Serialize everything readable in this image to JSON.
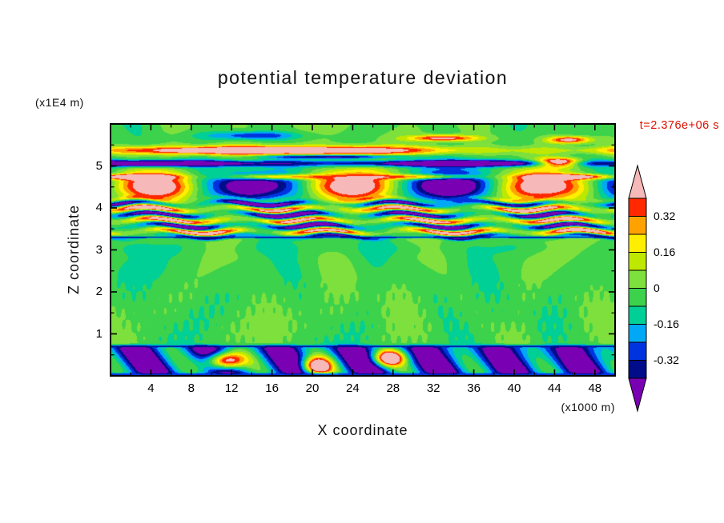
{
  "chart_data": {
    "type": "heatmap",
    "title": "potential temperature deviation",
    "timestamp": "t=2.376e+06 s",
    "xlabel": "X coordinate",
    "ylabel": "Z coordinate",
    "x_units": "(x1000 m)",
    "y_units": "(x1E4 m)",
    "xlim": [
      0,
      50
    ],
    "ylim": [
      0,
      6
    ],
    "xticks": [
      4,
      8,
      12,
      16,
      20,
      24,
      28,
      32,
      36,
      40,
      44,
      48
    ],
    "xtick_minor_step": 2,
    "yticks": [
      1,
      2,
      3,
      4,
      5
    ],
    "ytick_minor_step": 0.5,
    "grid": false,
    "legend_position": "right-colorbar",
    "accent_colors": {
      "timestamp_red": "#dd1100",
      "axis_black": "#000000"
    },
    "colorbar": {
      "tick_values": [
        0.32,
        0.16,
        0,
        -0.16,
        -0.32
      ],
      "tick_labels": [
        "0.32",
        "0.16",
        "0",
        "-0.16",
        "-0.32"
      ],
      "levels": [
        -0.4,
        -0.32,
        -0.24,
        -0.16,
        -0.08,
        0,
        0.08,
        0.16,
        0.24,
        0.32,
        0.4
      ],
      "colors_low_to_high": [
        "#7a00b4",
        "#000d8a",
        "#0033e0",
        "#00a8f5",
        "#00cf96",
        "#3cd24c",
        "#7ee03c",
        "#bfe800",
        "#ffee00",
        "#ffa200",
        "#ff2800",
        "#f6b8b8"
      ]
    },
    "field_model": {
      "mid": {
        "base": -0.03,
        "amp": 0.075,
        "kx": 0.52,
        "kz": 1.65,
        "warp": 1.25
      },
      "fine_texture": {
        "amp": 0.032,
        "kx": 6.1,
        "kz": 9.3,
        "z0": 0.72,
        "z1": 2.4
      },
      "teal_band": {
        "z": 3.05,
        "w": 0.18,
        "amp": -0.045
      },
      "stripes": {
        "z0": 3.25,
        "z1": 4.18,
        "period": 0.27,
        "amp": 0.5,
        "phase": -2.734,
        "mod_wl": 12.7,
        "wobble": 0.05
      },
      "cells": {
        "center": 4.52,
        "width": 0.34,
        "amp": 0.54,
        "wl": 19.5,
        "phase": 0.201
      },
      "salmon_stripe": {
        "z": 4.74,
        "w": 0.06,
        "amp": 0.5
      },
      "navy_band": {
        "z": 5.06,
        "w": 0.075,
        "amp": -0.55,
        "mod_wl": 31,
        "mod_phase": 0.8
      },
      "top_band": {
        "z": 5.37,
        "w": 0.1,
        "amp": 0.6,
        "mod_wl": 50,
        "mod_phase": -0.44
      },
      "top_blobs": [
        {
          "a": 0.5,
          "x": 33,
          "sx": 3.2,
          "z": 5.66,
          "sz": 0.07
        },
        {
          "a": 0.55,
          "x": 45.5,
          "sx": 2.1,
          "z": 5.62,
          "sz": 0.09
        },
        {
          "a": -0.32,
          "x": 14,
          "sx": 4.5,
          "z": 5.72,
          "sz": 0.1
        },
        {
          "a": 0.85,
          "x": 44.5,
          "sx": 2.2,
          "z": 5.08,
          "sz": 0.1
        },
        {
          "a": -0.45,
          "x": 22,
          "sx": 7,
          "z": 5.22,
          "sz": 0.045
        }
      ],
      "bottom": {
        "z1": 0.72,
        "base": -0.33,
        "amp": 0.22,
        "wl": 7.2,
        "blobs": [
          {
            "a": 0.95,
            "x": 11.3,
            "sx": 1.9,
            "z": 0.35,
            "sz": 0.21
          },
          {
            "a": 0.85,
            "x": 20.4,
            "sx": 1.5,
            "z": 0.22,
            "sz": 0.22
          },
          {
            "a": 0.8,
            "x": 27.6,
            "sx": 1.5,
            "z": 0.42,
            "sz": 0.19
          }
        ]
      },
      "lines": [
        {
          "z": 0.7,
          "w": 0.022,
          "v": -0.36
        },
        {
          "z": 0.03,
          "w": 0.04,
          "v": -0.3
        },
        {
          "z": 3.3,
          "w": 0.02,
          "v": -0.36
        }
      ]
    }
  }
}
